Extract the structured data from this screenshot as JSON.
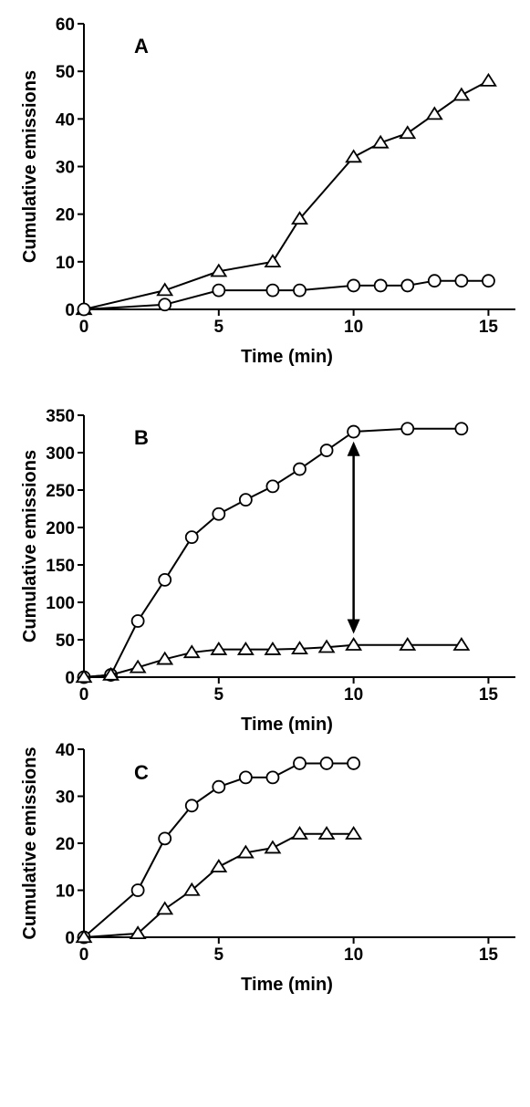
{
  "chart_data": [
    {
      "type": "line",
      "panel_label": "A",
      "xlabel": "Time (min)",
      "ylabel": "Cumulative emissions",
      "xlim": [
        0,
        16
      ],
      "ylim": [
        0,
        60
      ],
      "xticks": [
        0,
        5,
        10,
        15
      ],
      "yticks": [
        0,
        10,
        20,
        30,
        40,
        50,
        60
      ],
      "grid": false,
      "series": [
        {
          "marker": "triangle",
          "x": [
            0,
            3,
            5,
            7,
            8,
            10,
            11,
            12,
            13,
            14,
            15
          ],
          "y": [
            0,
            4,
            8,
            10,
            19,
            32,
            35,
            37,
            41,
            45,
            48
          ]
        },
        {
          "marker": "circle",
          "x": [
            0,
            3,
            5,
            7,
            8,
            10,
            11,
            12,
            13,
            14,
            15
          ],
          "y": [
            0,
            1,
            4,
            4,
            4,
            5,
            5,
            5,
            6,
            6,
            6
          ]
        }
      ]
    },
    {
      "type": "line",
      "panel_label": "B",
      "xlabel": "Time (min)",
      "ylabel": "Cumulative emissions",
      "xlim": [
        0,
        16
      ],
      "ylim": [
        0,
        350
      ],
      "xticks": [
        0,
        5,
        10,
        15
      ],
      "yticks": [
        0,
        50,
        100,
        150,
        200,
        250,
        300,
        350
      ],
      "grid": false,
      "series": [
        {
          "marker": "circle",
          "x": [
            0,
            1,
            2,
            3,
            4,
            5,
            6,
            7,
            8,
            9,
            10,
            12,
            14
          ],
          "y": [
            0,
            3,
            75,
            130,
            187,
            218,
            237,
            255,
            278,
            303,
            328,
            332,
            332
          ]
        },
        {
          "marker": "triangle",
          "x": [
            0,
            1,
            2,
            3,
            4,
            5,
            6,
            7,
            8,
            9,
            10,
            12,
            14
          ],
          "y": [
            0,
            3,
            13,
            24,
            33,
            37,
            37,
            37,
            38,
            40,
            43,
            43,
            43
          ]
        }
      ],
      "annotations": [
        {
          "type": "double-arrow",
          "x": 10,
          "y_from": 58,
          "y_to": 315
        }
      ]
    },
    {
      "type": "line",
      "panel_label": "C",
      "xlabel": "Time (min)",
      "ylabel": "Cumulative emissions",
      "xlim": [
        0,
        16
      ],
      "ylim": [
        0,
        40
      ],
      "xticks": [
        0,
        5,
        10,
        15
      ],
      "yticks": [
        0,
        10,
        20,
        30,
        40
      ],
      "grid": false,
      "series": [
        {
          "marker": "circle",
          "x": [
            0,
            2,
            3,
            4,
            5,
            6,
            7,
            8,
            9,
            10
          ],
          "y": [
            0,
            10,
            21,
            28,
            32,
            34,
            34,
            37,
            37,
            37
          ]
        },
        {
          "marker": "triangle",
          "x": [
            0,
            2,
            3,
            4,
            5,
            6,
            7,
            8,
            9,
            10
          ],
          "y": [
            0,
            0.8,
            6,
            10,
            15,
            18,
            19,
            22,
            22,
            22
          ]
        }
      ]
    }
  ]
}
